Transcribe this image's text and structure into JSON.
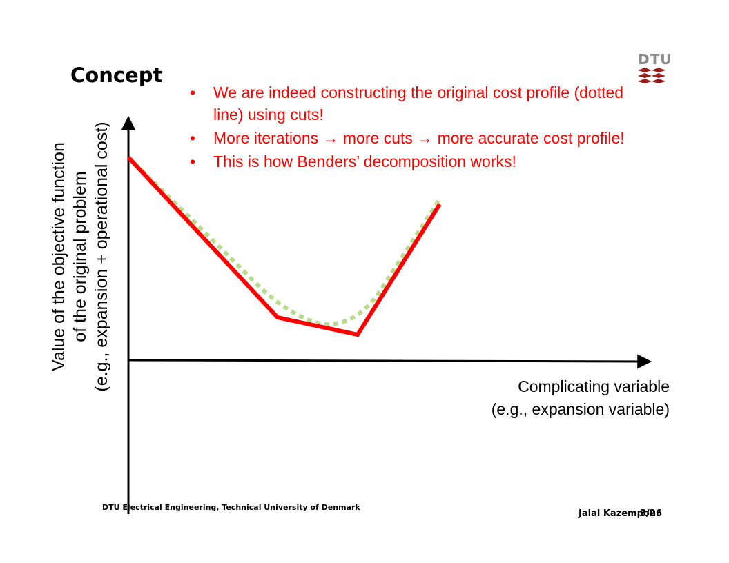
{
  "slide": {
    "title": "Concept",
    "bullets": [
      "We are indeed constructing the original cost profile (dotted line) using cuts!",
      "More iterations → more cuts → more accurate cost profile!",
      "This is how Benders’ decomposition works!"
    ],
    "footer_left": "DTU Electrical Engineering, Technical University of Denmark",
    "author": "Jalal Kazempour",
    "page": "3/26",
    "logo_text": "DTU"
  },
  "diagram": {
    "y_axis_label_lines": [
      "Value of the objective function",
      "of the original problem",
      "(e.g., expansion + operational cost)"
    ],
    "x_axis_label_lines": [
      "Complicating variable",
      "(e.g., expansion variable)"
    ],
    "colors": {
      "axis": "#000000",
      "cuts_line": "#ff0000",
      "cost_profile_dotted": "#b9dc8c",
      "bullet_text": "#ff0000",
      "logo_red": "#9b1b1b",
      "logo_gray": "#8a8a8a"
    }
  }
}
